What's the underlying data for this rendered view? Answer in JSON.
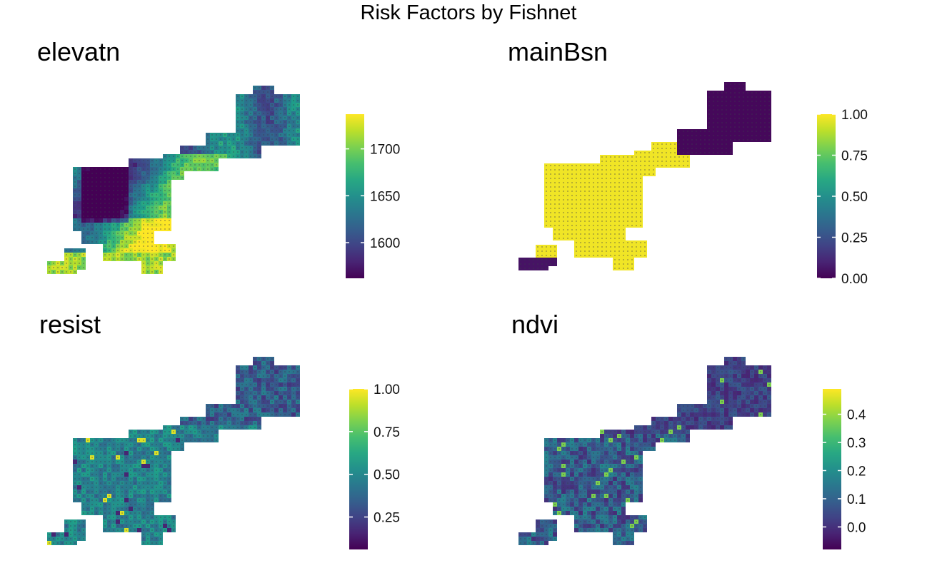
{
  "title": "Risk Factors by Fishnet",
  "panels": [
    {
      "id": "elevatn",
      "title": "elevatn",
      "legend": {
        "min": 1562,
        "max": 1737,
        "ticks": [
          1600,
          1650,
          1700
        ],
        "tick_labels": [
          "1600",
          "1650",
          "1700"
        ]
      },
      "palette": "viridis",
      "pattern": "elevation"
    },
    {
      "id": "mainBsn",
      "title": "mainBsn",
      "legend": {
        "min": 0,
        "max": 1,
        "ticks": [
          0,
          0.25,
          0.5,
          0.75,
          1
        ],
        "tick_labels": [
          "0.00",
          "0.25",
          "0.50",
          "0.75",
          "1.00"
        ]
      },
      "palette": "viridis",
      "pattern": "basin"
    },
    {
      "id": "resist",
      "title": "resist",
      "legend": {
        "min": 0.06,
        "max": 1,
        "ticks": [
          0.25,
          0.5,
          0.75,
          1
        ],
        "tick_labels": [
          "0.25",
          "0.50",
          "0.75",
          "1.00"
        ]
      },
      "palette": "viridis",
      "pattern": "resist"
    },
    {
      "id": "ndvi",
      "title": "ndvi",
      "legend": {
        "min": -0.08,
        "max": 0.49,
        "ticks": [
          0,
          0.1,
          0.2,
          0.3,
          0.4
        ],
        "tick_labels": [
          "0.0",
          "0.1",
          "0.2",
          "0.3",
          "0.4"
        ]
      },
      "palette": "viridis",
      "pattern": "ndvi"
    }
  ]
}
